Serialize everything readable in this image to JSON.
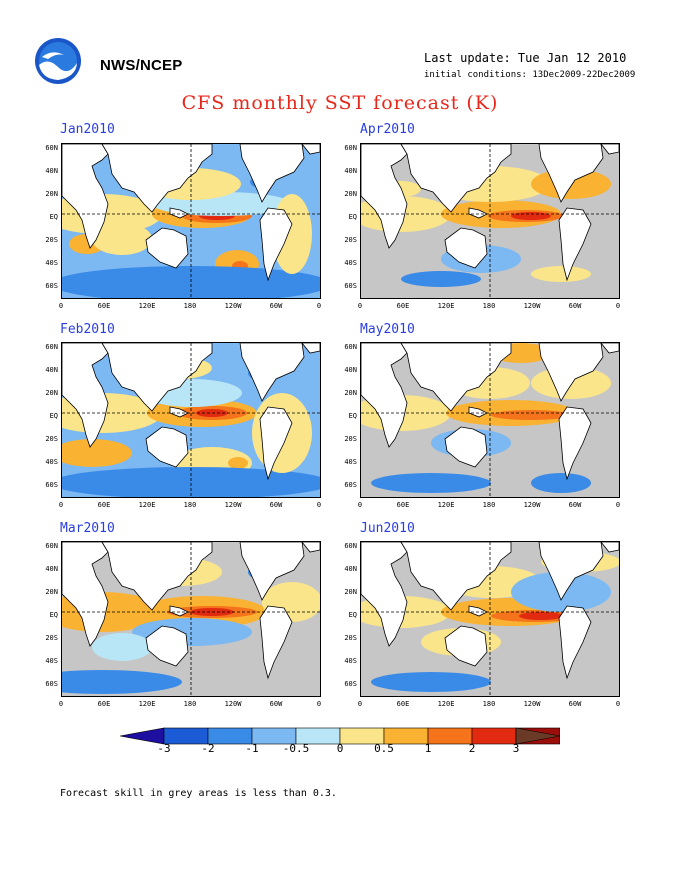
{
  "header": {
    "agency": "NWS/NCEP",
    "last_update": "Last update: Tue Jan 12 2010",
    "initial_conditions": "initial conditions: 13Dec2009-22Dec2009",
    "title": "CFS monthly SST forecast (K)"
  },
  "panels": [
    {
      "title": "Jan2010"
    },
    {
      "title": "Apr2010"
    },
    {
      "title": "Feb2010"
    },
    {
      "title": "May2010"
    },
    {
      "title": "Mar2010"
    },
    {
      "title": "Jun2010"
    }
  ],
  "axes": {
    "lat_labels": [
      "60N",
      "40N",
      "20N",
      "EQ",
      "20S",
      "40S",
      "60S"
    ],
    "lon_labels": [
      "0",
      "60E",
      "120E",
      "180",
      "120W",
      "60W",
      "0"
    ]
  },
  "colorbar": {
    "labels": [
      "-3",
      "-2",
      "-1",
      "-0.5",
      "0",
      "0.5",
      "1",
      "2",
      "3"
    ],
    "colors": [
      "#1f0fa0",
      "#1c5bd6",
      "#3a8ae8",
      "#7cb8f2",
      "#b8e6f6",
      "#fbe58a",
      "#f9b232",
      "#f5731a",
      "#e22a10",
      "#9c0e0a",
      "#6b3a26"
    ]
  },
  "footnote": "Forecast skill in grey areas is less than 0.3."
}
